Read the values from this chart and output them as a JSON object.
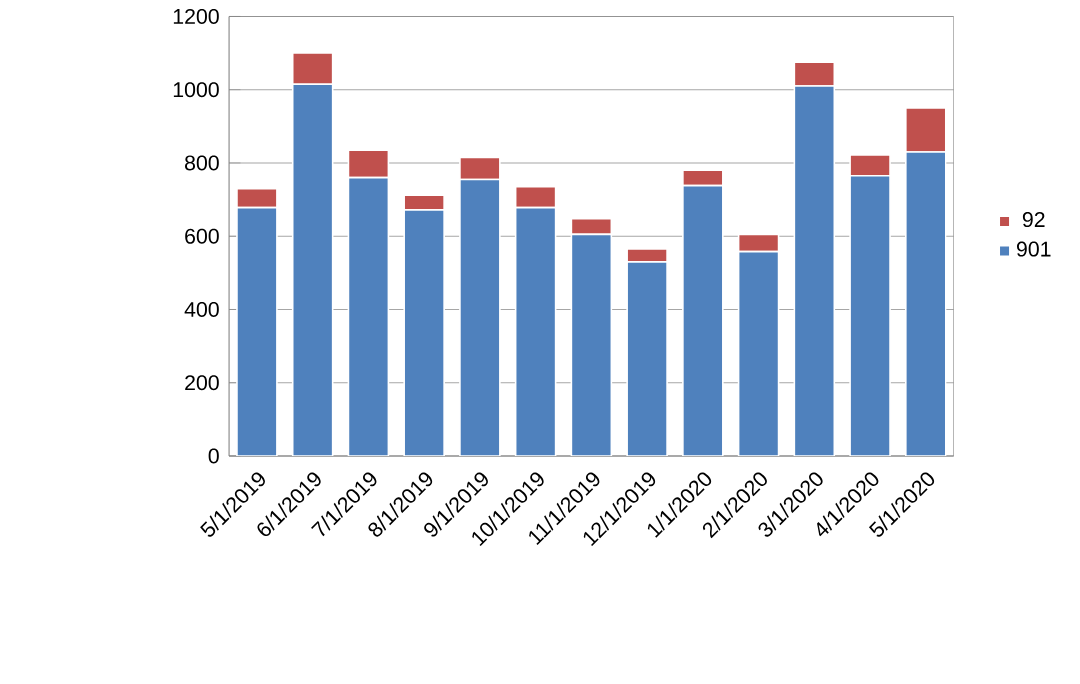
{
  "chart_data": {
    "type": "bar",
    "stacked": true,
    "categories": [
      "5/1/2019",
      "6/1/2019",
      "7/1/2019",
      "8/1/2019",
      "9/1/2019",
      "10/1/2019",
      "11/1/2019",
      "12/1/2019",
      "1/1/2020",
      "2/1/2020",
      "3/1/2020",
      "4/1/2020",
      "5/1/2020"
    ],
    "series": [
      {
        "name": "901",
        "color": "#4f81bd",
        "values": [
          678,
          1015,
          760,
          672,
          755,
          678,
          605,
          530,
          738,
          558,
          1010,
          765,
          830
        ]
      },
      {
        "name": "92",
        "color": "#c0504d",
        "values": [
          52,
          85,
          75,
          40,
          60,
          57,
          43,
          35,
          42,
          47,
          65,
          57,
          120
        ]
      }
    ],
    "ylim": [
      0,
      1200
    ],
    "yticks": [
      0,
      200,
      400,
      600,
      800,
      1000,
      1200
    ],
    "grid": "y",
    "legend": "right"
  }
}
